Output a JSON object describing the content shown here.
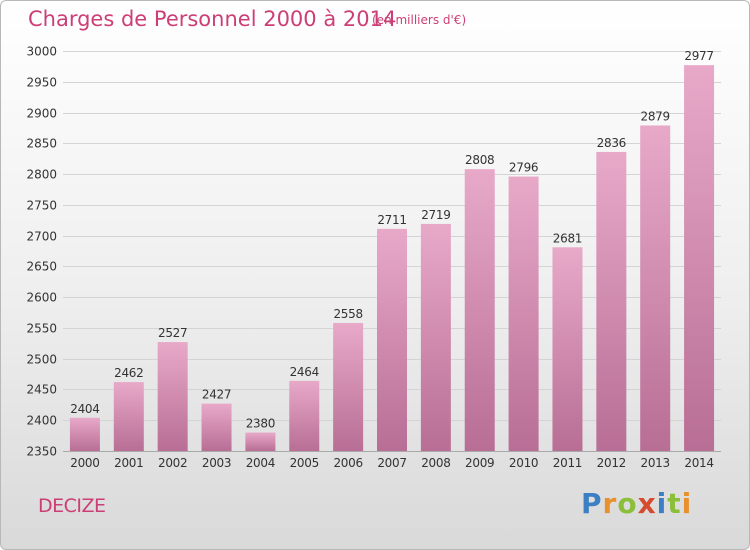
{
  "header": {
    "title": "Charges de Personnel 2000 à 2014",
    "subtitle": "(en milliers d'€)"
  },
  "footer": {
    "place": "DECIZE",
    "logo": {
      "letters": [
        "P",
        "r",
        "o",
        "x",
        "i",
        "t",
        "i"
      ],
      "colors": [
        "#3c7fc3",
        "#e8912c",
        "#8bbf3a",
        "#d64a2e",
        "#3c7fc3",
        "#8bbf3a",
        "#e8912c"
      ]
    }
  },
  "chart_data": {
    "type": "bar",
    "categories": [
      "2000",
      "2001",
      "2002",
      "2003",
      "2004",
      "2005",
      "2006",
      "2007",
      "2008",
      "2009",
      "2010",
      "2011",
      "2012",
      "2013",
      "2014"
    ],
    "values": [
      2404,
      2462,
      2527,
      2427,
      2380,
      2464,
      2558,
      2711,
      2719,
      2808,
      2796,
      2681,
      2836,
      2879,
      2977
    ],
    "ylim": [
      2350,
      3000
    ],
    "yticks": [
      2350,
      2400,
      2450,
      2500,
      2550,
      2600,
      2650,
      2700,
      2750,
      2800,
      2850,
      2900,
      2950,
      3000
    ],
    "grid": true,
    "colors": {
      "bar_top": "#e8a9c9",
      "bar_bottom": "#b86e95",
      "grid": "#d4d4d4",
      "axis_text": "#333333"
    }
  }
}
